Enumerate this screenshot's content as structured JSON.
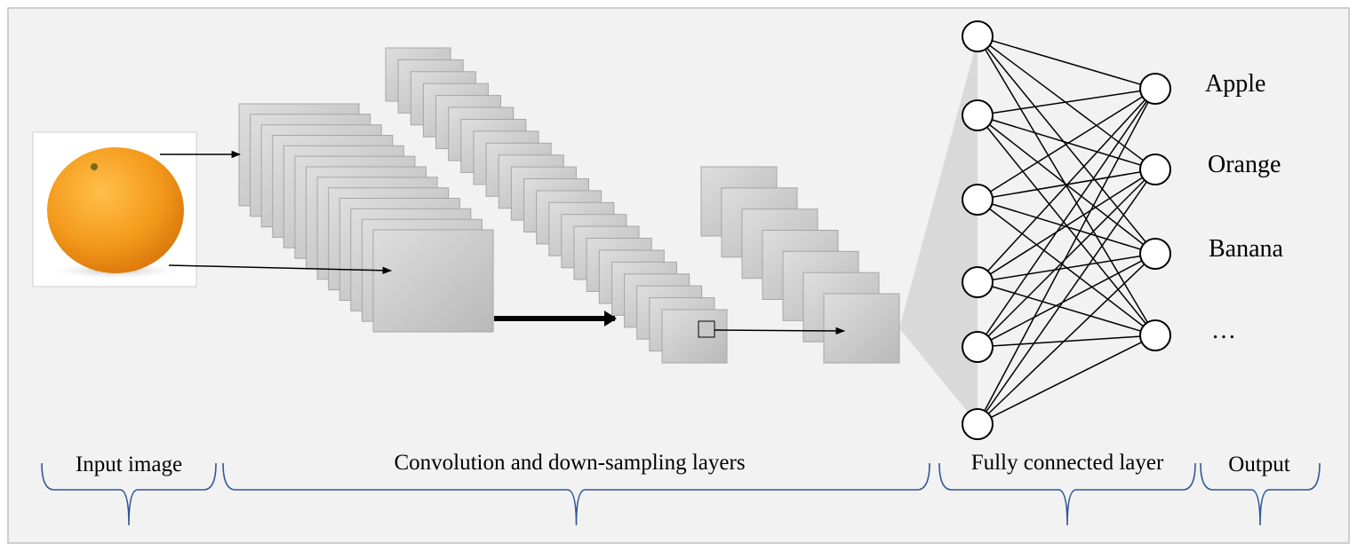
{
  "outputs": [
    "Apple",
    "Orange",
    "Banana",
    "…"
  ],
  "stages": {
    "input": "Input image",
    "conv": "Convolution and down-sampling layers",
    "fc": "Fully connected layer",
    "output": "Output"
  },
  "network": {
    "input_nodes": 6,
    "output_nodes": 4
  },
  "input_image": {
    "subject": "orange-fruit"
  },
  "colors": {
    "background": "#f2f2f2",
    "frame": "#bfbfbf",
    "brace": "#2f5597",
    "layer_fill": "#c8c8c8",
    "fc_wedge": "#d9d9d9",
    "orange": "#f29b1c"
  }
}
